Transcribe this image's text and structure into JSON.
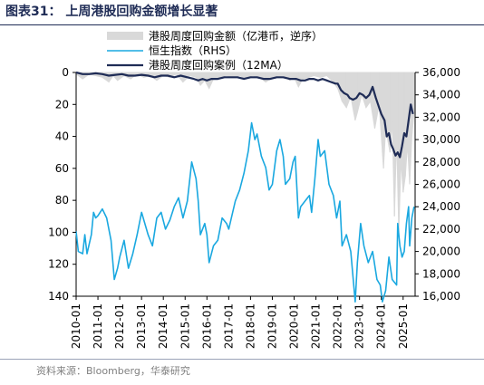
{
  "header": {
    "title": "图表31：  上周港股回购金额增长显著"
  },
  "footer": {
    "source": "资料来源：Bloomberg，华泰研究"
  },
  "chart_data": {
    "type": "line",
    "x_ticks": [
      "2010-01",
      "2011-01",
      "2012-01",
      "2013-01",
      "2014-01",
      "2015-01",
      "2016-01",
      "2017-01",
      "2018-01",
      "2019-01",
      "2020-01",
      "2021-01",
      "2022-01",
      "2023-01",
      "2024-01",
      "2025-01"
    ],
    "y_left": {
      "inverted": true,
      "lim": [
        0,
        140
      ],
      "ticks": [
        "0",
        "20",
        "40",
        "60",
        "80",
        "100",
        "120",
        "140"
      ]
    },
    "y_right": {
      "lim": [
        16000,
        36000
      ],
      "ticks": [
        "16,000",
        "18,000",
        "20,000",
        "22,000",
        "24,000",
        "26,000",
        "28,000",
        "30,000",
        "32,000",
        "34,000",
        "36,000"
      ]
    },
    "legend": {
      "position": "top",
      "entries": [
        "港股周度回购金额（亿港币，逆序）",
        "恒生指数（RHS）",
        "港股周度回购案例（12MA）"
      ]
    },
    "series": [
      {
        "name": "港股周度回购金额（亿港币，逆序）",
        "axis": "left",
        "color": "#d9d9d9",
        "style": "weekly-bars",
        "points": [
          [
            2010.0,
            1
          ],
          [
            2010.3,
            4
          ],
          [
            2010.6,
            1
          ],
          [
            2010.9,
            2
          ],
          [
            2011.2,
            3
          ],
          [
            2011.5,
            6
          ],
          [
            2011.7,
            2
          ],
          [
            2011.9,
            5
          ],
          [
            2012.2,
            2
          ],
          [
            2012.5,
            4
          ],
          [
            2012.8,
            1
          ],
          [
            2013.1,
            3
          ],
          [
            2013.4,
            2
          ],
          [
            2013.7,
            5
          ],
          [
            2014.0,
            2
          ],
          [
            2014.3,
            3
          ],
          [
            2014.6,
            1
          ],
          [
            2014.9,
            6
          ],
          [
            2015.2,
            2
          ],
          [
            2015.5,
            3
          ],
          [
            2015.7,
            8
          ],
          [
            2015.9,
            5
          ],
          [
            2016.1,
            10
          ],
          [
            2016.3,
            4
          ],
          [
            2016.6,
            3
          ],
          [
            2016.9,
            2
          ],
          [
            2017.2,
            3
          ],
          [
            2017.5,
            2
          ],
          [
            2017.8,
            4
          ],
          [
            2018.1,
            2
          ],
          [
            2018.4,
            3
          ],
          [
            2018.7,
            6
          ],
          [
            2018.9,
            4
          ],
          [
            2019.2,
            3
          ],
          [
            2019.5,
            2
          ],
          [
            2019.8,
            5
          ],
          [
            2020.0,
            3
          ],
          [
            2020.2,
            9
          ],
          [
            2020.4,
            4
          ],
          [
            2020.7,
            3
          ],
          [
            2020.9,
            2
          ],
          [
            2021.2,
            3
          ],
          [
            2021.5,
            2
          ],
          [
            2021.8,
            6
          ],
          [
            2022.0,
            10
          ],
          [
            2022.2,
            18
          ],
          [
            2022.4,
            22
          ],
          [
            2022.6,
            15
          ],
          [
            2022.8,
            30
          ],
          [
            2022.9,
            25
          ],
          [
            2023.1,
            14
          ],
          [
            2023.3,
            22
          ],
          [
            2023.5,
            18
          ],
          [
            2023.7,
            35
          ],
          [
            2023.9,
            20
          ],
          [
            2024.1,
            60
          ],
          [
            2024.2,
            35
          ],
          [
            2024.4,
            50
          ],
          [
            2024.5,
            30
          ],
          [
            2024.6,
            90
          ],
          [
            2024.7,
            40
          ],
          [
            2024.8,
            100
          ],
          [
            2024.9,
            55
          ],
          [
            2025.0,
            75
          ],
          [
            2025.1,
            65
          ],
          [
            2025.2,
            45
          ],
          [
            2025.3,
            70
          ],
          [
            2025.4,
            40
          ],
          [
            2025.5,
            25
          ]
        ]
      },
      {
        "name": "恒生指数（RHS）",
        "axis": "right",
        "color": "#1aa8e0",
        "style": "line",
        "points": [
          [
            2010.0,
            21800
          ],
          [
            2010.1,
            20000
          ],
          [
            2010.3,
            19800
          ],
          [
            2010.4,
            21500
          ],
          [
            2010.5,
            19800
          ],
          [
            2010.7,
            21500
          ],
          [
            2010.8,
            23500
          ],
          [
            2010.9,
            23000
          ],
          [
            2011.0,
            23200
          ],
          [
            2011.2,
            23800
          ],
          [
            2011.4,
            23000
          ],
          [
            2011.6,
            21000
          ],
          [
            2011.75,
            17500
          ],
          [
            2011.9,
            18500
          ],
          [
            2012.0,
            19500
          ],
          [
            2012.2,
            21000
          ],
          [
            2012.4,
            18500
          ],
          [
            2012.6,
            19800
          ],
          [
            2012.8,
            21500
          ],
          [
            2013.0,
            23500
          ],
          [
            2013.3,
            21500
          ],
          [
            2013.5,
            20500
          ],
          [
            2013.7,
            23000
          ],
          [
            2013.9,
            23500
          ],
          [
            2014.1,
            22000
          ],
          [
            2014.3,
            22800
          ],
          [
            2014.5,
            24000
          ],
          [
            2014.7,
            24800
          ],
          [
            2014.9,
            23000
          ],
          [
            2015.1,
            24500
          ],
          [
            2015.3,
            28000
          ],
          [
            2015.5,
            26500
          ],
          [
            2015.6,
            24500
          ],
          [
            2015.7,
            21500
          ],
          [
            2015.9,
            22500
          ],
          [
            2016.0,
            21500
          ],
          [
            2016.1,
            19000
          ],
          [
            2016.3,
            20500
          ],
          [
            2016.5,
            21000
          ],
          [
            2016.7,
            23000
          ],
          [
            2016.9,
            22500
          ],
          [
            2017.0,
            22000
          ],
          [
            2017.3,
            24500
          ],
          [
            2017.5,
            25500
          ],
          [
            2017.7,
            27000
          ],
          [
            2017.9,
            29000
          ],
          [
            2018.05,
            31500
          ],
          [
            2018.2,
            30000
          ],
          [
            2018.3,
            30500
          ],
          [
            2018.5,
            28500
          ],
          [
            2018.7,
            27500
          ],
          [
            2018.85,
            25500
          ],
          [
            2019.0,
            26000
          ],
          [
            2019.2,
            29000
          ],
          [
            2019.35,
            30000
          ],
          [
            2019.5,
            28500
          ],
          [
            2019.6,
            26000
          ],
          [
            2019.8,
            26500
          ],
          [
            2019.95,
            28000
          ],
          [
            2020.05,
            28500
          ],
          [
            2020.2,
            23000
          ],
          [
            2020.3,
            24000
          ],
          [
            2020.5,
            24500
          ],
          [
            2020.7,
            25000
          ],
          [
            2020.8,
            23500
          ],
          [
            2020.95,
            26500
          ],
          [
            2021.1,
            30000
          ],
          [
            2021.2,
            28500
          ],
          [
            2021.4,
            29000
          ],
          [
            2021.6,
            26000
          ],
          [
            2021.8,
            25000
          ],
          [
            2021.95,
            23000
          ],
          [
            2022.1,
            24500
          ],
          [
            2022.2,
            20500
          ],
          [
            2022.4,
            21500
          ],
          [
            2022.6,
            20000
          ],
          [
            2022.8,
            15500
          ],
          [
            2022.9,
            19000
          ],
          [
            2023.05,
            22500
          ],
          [
            2023.2,
            20500
          ],
          [
            2023.4,
            19000
          ],
          [
            2023.6,
            20000
          ],
          [
            2023.8,
            17500
          ],
          [
            2023.95,
            17000
          ],
          [
            2024.05,
            15500
          ],
          [
            2024.2,
            16500
          ],
          [
            2024.35,
            19500
          ],
          [
            2024.5,
            17500
          ],
          [
            2024.7,
            17000
          ],
          [
            2024.75,
            22500
          ],
          [
            2024.85,
            20500
          ],
          [
            2024.95,
            19500
          ],
          [
            2025.05,
            20000
          ],
          [
            2025.15,
            22500
          ],
          [
            2025.25,
            24000
          ],
          [
            2025.3,
            20500
          ],
          [
            2025.4,
            23000
          ],
          [
            2025.5,
            24000
          ]
        ]
      },
      {
        "name": "港股周度回购案例（12MA）",
        "axis": "left",
        "color": "#1f2c56",
        "style": "line",
        "points": [
          [
            2010.0,
            0
          ],
          [
            2010.3,
            1
          ],
          [
            2010.6,
            1
          ],
          [
            2010.9,
            0.5
          ],
          [
            2011.2,
            1
          ],
          [
            2011.5,
            2
          ],
          [
            2011.8,
            1.5
          ],
          [
            2012.1,
            1
          ],
          [
            2012.4,
            2
          ],
          [
            2012.7,
            2
          ],
          [
            2013.0,
            1.5
          ],
          [
            2013.3,
            2
          ],
          [
            2013.6,
            3
          ],
          [
            2013.9,
            2
          ],
          [
            2014.2,
            2
          ],
          [
            2014.5,
            3
          ],
          [
            2014.8,
            2
          ],
          [
            2015.1,
            3
          ],
          [
            2015.4,
            4
          ],
          [
            2015.6,
            5
          ],
          [
            2015.8,
            4
          ],
          [
            2016.0,
            5
          ],
          [
            2016.2,
            4
          ],
          [
            2016.5,
            4
          ],
          [
            2016.8,
            3
          ],
          [
            2017.1,
            3
          ],
          [
            2017.4,
            3
          ],
          [
            2017.7,
            4
          ],
          [
            2018.0,
            3
          ],
          [
            2018.3,
            3
          ],
          [
            2018.6,
            4
          ],
          [
            2018.9,
            4
          ],
          [
            2019.2,
            3
          ],
          [
            2019.5,
            3
          ],
          [
            2019.8,
            4
          ],
          [
            2020.1,
            4
          ],
          [
            2020.3,
            5
          ],
          [
            2020.5,
            5
          ],
          [
            2020.7,
            4
          ],
          [
            2020.9,
            4
          ],
          [
            2021.1,
            5
          ],
          [
            2021.3,
            4
          ],
          [
            2021.5,
            5
          ],
          [
            2021.7,
            6
          ],
          [
            2021.9,
            7
          ],
          [
            2022.0,
            7
          ],
          [
            2022.15,
            11
          ],
          [
            2022.3,
            13
          ],
          [
            2022.45,
            14
          ],
          [
            2022.55,
            16
          ],
          [
            2022.7,
            17
          ],
          [
            2022.85,
            16
          ],
          [
            2023.0,
            13
          ],
          [
            2023.15,
            14
          ],
          [
            2023.3,
            16
          ],
          [
            2023.45,
            14
          ],
          [
            2023.6,
            9
          ],
          [
            2023.75,
            16
          ],
          [
            2023.9,
            22
          ],
          [
            2024.0,
            26
          ],
          [
            2024.15,
            30
          ],
          [
            2024.25,
            40
          ],
          [
            2024.35,
            38
          ],
          [
            2024.45,
            45
          ],
          [
            2024.55,
            48
          ],
          [
            2024.65,
            52
          ],
          [
            2024.75,
            50
          ],
          [
            2024.85,
            53
          ],
          [
            2024.95,
            46
          ],
          [
            2025.05,
            38
          ],
          [
            2025.15,
            40
          ],
          [
            2025.25,
            30
          ],
          [
            2025.35,
            20
          ],
          [
            2025.45,
            26
          ]
        ]
      }
    ]
  }
}
